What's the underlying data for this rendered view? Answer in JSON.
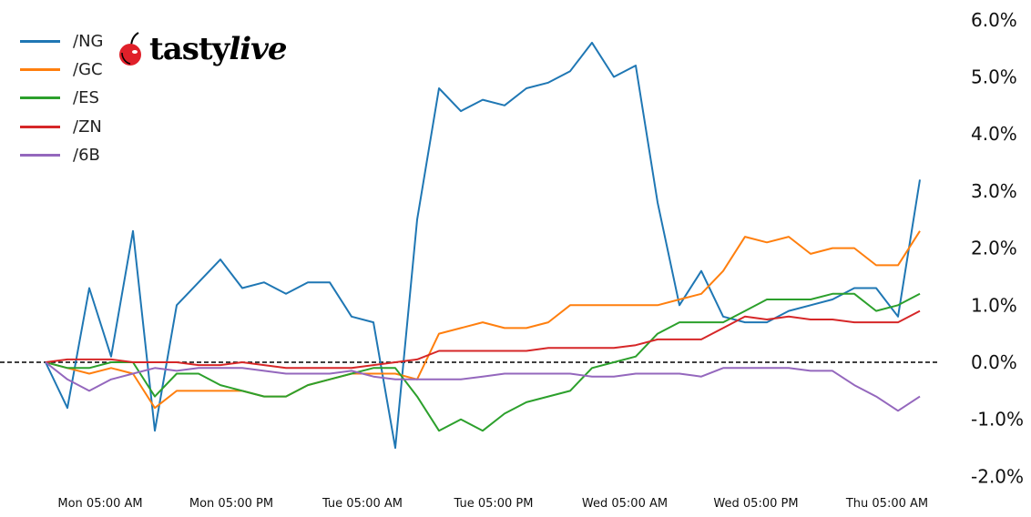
{
  "logo": {
    "text_part1": "tasty",
    "text_part2": "live",
    "icon": "cherry-icon",
    "cherry_color": "#e0202a"
  },
  "chart_data": {
    "type": "line",
    "title": "",
    "xlabel": "",
    "ylabel": "",
    "ylim": [
      -2.0,
      6.0
    ],
    "y_ticks": [
      6.0,
      5.0,
      4.0,
      3.0,
      2.0,
      1.0,
      0.0,
      -1.0,
      -2.0
    ],
    "y_tick_labels": [
      "6.0%",
      "5.0%",
      "4.0%",
      "3.0%",
      "2.0%",
      "1.0%",
      "0.0%",
      "-1.0%",
      "-2.0%"
    ],
    "y_axis_position": "right",
    "x_ticks": [
      "Mon 05:00",
      "Mon 17:00",
      "Tue 05:00",
      "Tue 17:00",
      "Wed 05:00",
      "Wed 17:00",
      "Thu 05:00"
    ],
    "x_tick_labels": [
      "Mon 05:00 AM",
      "Mon 05:00 PM",
      "Tue 05:00 AM",
      "Tue 05:00 PM",
      "Wed 05:00 AM",
      "Wed 05:00 PM",
      "Thu 05:00 AM"
    ],
    "zero_line": "dashed",
    "grid": false,
    "legend_position": "top-left",
    "x": [
      "Mon 00:00",
      "Mon 02:00",
      "Mon 04:00",
      "Mon 06:00",
      "Mon 08:00",
      "Mon 10:00",
      "Mon 12:00",
      "Mon 14:00",
      "Mon 16:00",
      "Mon 18:00",
      "Mon 20:00",
      "Mon 22:00",
      "Tue 00:00",
      "Tue 02:00",
      "Tue 04:00",
      "Tue 06:00",
      "Tue 08:00",
      "Tue 10:00",
      "Tue 12:00",
      "Tue 14:00",
      "Tue 16:00",
      "Tue 18:00",
      "Tue 20:00",
      "Tue 22:00",
      "Wed 00:00",
      "Wed 02:00",
      "Wed 04:00",
      "Wed 06:00",
      "Wed 08:00",
      "Wed 10:00",
      "Wed 12:00",
      "Wed 14:00",
      "Wed 16:00",
      "Wed 18:00",
      "Wed 20:00",
      "Wed 22:00",
      "Thu 00:00",
      "Thu 02:00",
      "Thu 04:00",
      "Thu 06:00",
      "Thu 08:00"
    ],
    "series": [
      {
        "name": "/NG",
        "color": "#1f77b4",
        "values": [
          0,
          -0.8,
          1.3,
          0.1,
          2.3,
          -1.2,
          1.0,
          1.4,
          1.8,
          1.3,
          1.4,
          1.2,
          1.4,
          1.4,
          0.8,
          0.7,
          -1.5,
          2.5,
          4.8,
          4.4,
          4.6,
          4.5,
          4.8,
          4.9,
          5.1,
          5.6,
          5.0,
          5.2,
          2.8,
          1.0,
          1.6,
          0.8,
          0.7,
          0.7,
          0.9,
          1.0,
          1.1,
          1.3,
          1.3,
          0.8,
          3.2
        ]
      },
      {
        "name": "/GC",
        "color": "#ff7f0e",
        "values": [
          0,
          -0.1,
          -0.2,
          -0.1,
          -0.2,
          -0.8,
          -0.5,
          -0.5,
          -0.5,
          -0.5,
          -0.6,
          -0.6,
          -0.4,
          -0.3,
          -0.2,
          -0.2,
          -0.2,
          -0.3,
          0.5,
          0.6,
          0.7,
          0.6,
          0.6,
          0.7,
          1.0,
          1.0,
          1.0,
          1.0,
          1.0,
          1.1,
          1.2,
          1.6,
          2.2,
          2.1,
          2.2,
          1.9,
          2.0,
          2.0,
          1.7,
          1.7,
          2.3
        ]
      },
      {
        "name": "/ES",
        "color": "#2ca02c",
        "values": [
          0,
          -0.1,
          -0.1,
          0.0,
          0.0,
          -0.6,
          -0.2,
          -0.2,
          -0.4,
          -0.5,
          -0.6,
          -0.6,
          -0.4,
          -0.3,
          -0.2,
          -0.1,
          -0.1,
          -0.6,
          -1.2,
          -1.0,
          -1.2,
          -0.9,
          -0.7,
          -0.6,
          -0.5,
          -0.1,
          0.0,
          0.1,
          0.5,
          0.7,
          0.7,
          0.7,
          0.9,
          1.1,
          1.1,
          1.1,
          1.2,
          1.2,
          0.9,
          1.0,
          1.2
        ]
      },
      {
        "name": "/ZN",
        "color": "#d62728",
        "values": [
          0,
          0.05,
          0.05,
          0.05,
          0.0,
          0.0,
          0.0,
          -0.05,
          -0.05,
          0.0,
          -0.05,
          -0.1,
          -0.1,
          -0.1,
          -0.1,
          -0.05,
          0.0,
          0.05,
          0.2,
          0.2,
          0.2,
          0.2,
          0.2,
          0.25,
          0.25,
          0.25,
          0.25,
          0.3,
          0.4,
          0.4,
          0.4,
          0.6,
          0.8,
          0.75,
          0.8,
          0.75,
          0.75,
          0.7,
          0.7,
          0.7,
          0.9
        ]
      },
      {
        "name": "/6B",
        "color": "#9467bd",
        "values": [
          0,
          -0.3,
          -0.5,
          -0.3,
          -0.2,
          -0.1,
          -0.15,
          -0.1,
          -0.1,
          -0.1,
          -0.15,
          -0.2,
          -0.2,
          -0.2,
          -0.15,
          -0.25,
          -0.3,
          -0.3,
          -0.3,
          -0.3,
          -0.25,
          -0.2,
          -0.2,
          -0.2,
          -0.2,
          -0.25,
          -0.25,
          -0.2,
          -0.2,
          -0.2,
          -0.25,
          -0.1,
          -0.1,
          -0.1,
          -0.1,
          -0.15,
          -0.15,
          -0.4,
          -0.6,
          -0.85,
          -0.6
        ]
      }
    ]
  }
}
